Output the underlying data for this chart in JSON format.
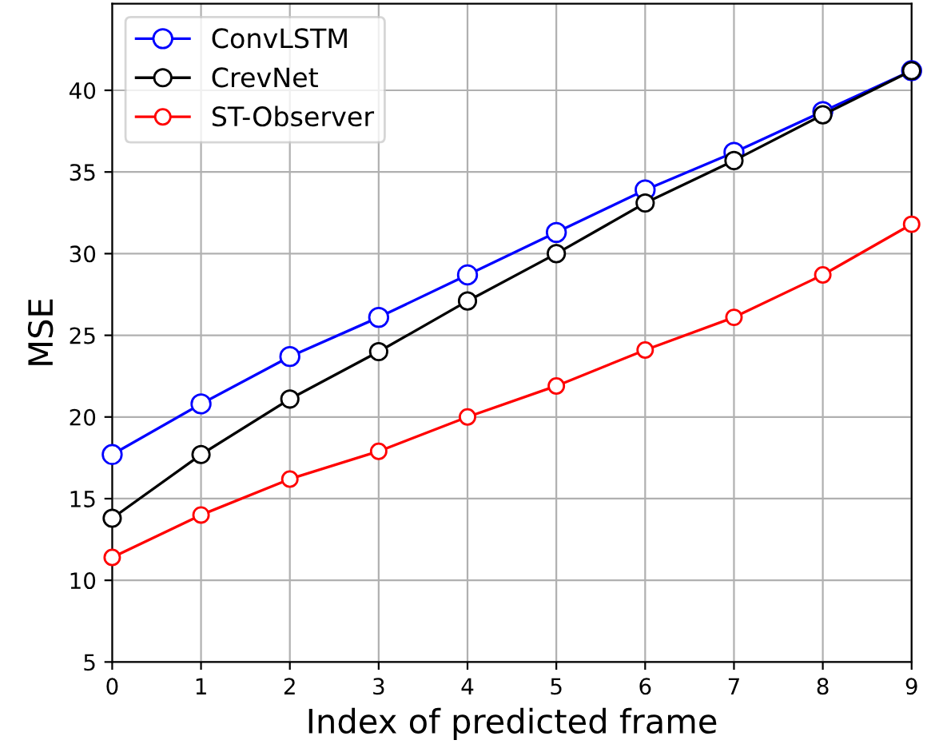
{
  "chart_data": {
    "type": "line",
    "xlabel": "Index of predicted frame",
    "ylabel": "MSE",
    "x": [
      0,
      1,
      2,
      3,
      4,
      5,
      6,
      7,
      8,
      9
    ],
    "series": [
      {
        "name": "ConvLSTM",
        "color": "#0000ff",
        "values": [
          17.7,
          20.8,
          23.7,
          26.1,
          28.7,
          31.3,
          33.9,
          36.2,
          38.7,
          41.2
        ]
      },
      {
        "name": "CrevNet",
        "color": "#000000",
        "values": [
          13.8,
          17.7,
          21.1,
          24.0,
          27.1,
          30.0,
          33.1,
          35.7,
          38.5,
          41.2
        ]
      },
      {
        "name": "ST-Observer",
        "color": "#ff0000",
        "values": [
          11.4,
          14.0,
          16.2,
          17.9,
          20.0,
          21.9,
          24.1,
          26.1,
          28.7,
          31.8
        ]
      }
    ],
    "xlim": [
      0,
      9
    ],
    "xticks": [
      0,
      1,
      2,
      3,
      4,
      5,
      6,
      7,
      8,
      9
    ],
    "ylim": [
      5,
      45.3
    ],
    "yticks": [
      5,
      10,
      15,
      20,
      25,
      30,
      35,
      40
    ],
    "grid": true,
    "legend": "top left",
    "marker": "circle",
    "line_style": "solid"
  }
}
